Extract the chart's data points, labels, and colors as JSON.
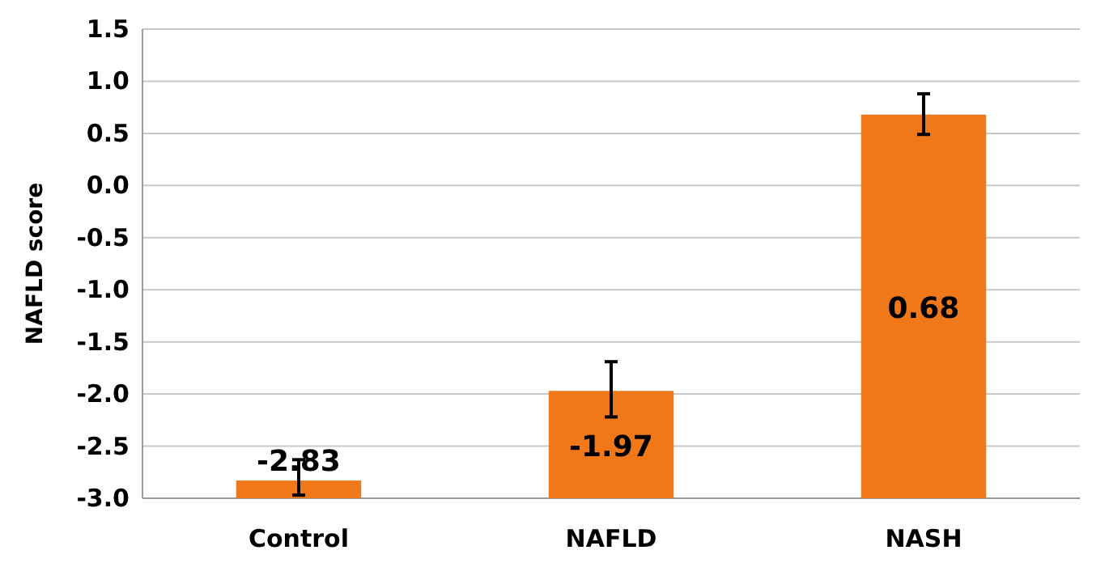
{
  "chart_data": {
    "type": "bar",
    "ylabel": "NAFLD score",
    "categories": [
      "Control",
      "NAFLD",
      "NASH"
    ],
    "base": [
      -3,
      -3,
      -3
    ],
    "values": [
      0.17,
      1.03,
      3.68
    ],
    "value_labels": [
      "-2.83",
      "-1.97",
      "0.68"
    ],
    "errors": [
      [
        -2.97,
        -2.63
      ],
      [
        -2.22,
        -1.69
      ],
      [
        0.49,
        0.88
      ]
    ],
    "color": "#f07818",
    "ylim": [
      -3,
      1.5
    ],
    "yticks": [
      {
        "value": -3,
        "label": "-3.0"
      },
      -2.5,
      {
        "value": -2,
        "label": "-2.0"
      },
      -1.5,
      {
        "value": -1,
        "label": "-1.0"
      },
      -0.5,
      {
        "value": 0,
        "label": "0.0"
      },
      0.5,
      {
        "value": 1,
        "label": "1.0"
      },
      1.5
    ],
    "grid": "y"
  }
}
